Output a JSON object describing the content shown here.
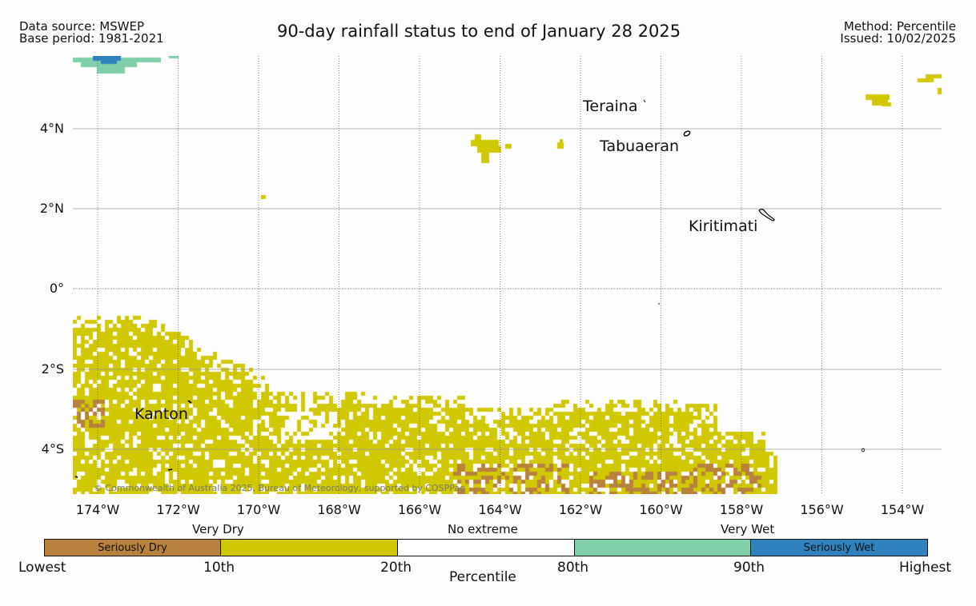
{
  "header": {
    "data_source": "Data source: MSWEP",
    "base_period": "Base period: 1981-2021",
    "title": "90-day rainfall status to end of January 28 2025",
    "method": "Method: Percentile",
    "issued": "Issued: 10/02/2025"
  },
  "map": {
    "lat_ticks": [
      "4°N",
      "2°N",
      "0°",
      "2°S",
      "4°S"
    ],
    "lon_ticks": [
      "174°W",
      "172°W",
      "170°W",
      "168°W",
      "166°W",
      "164°W",
      "162°W",
      "160°W",
      "158°W",
      "156°W",
      "154°W"
    ],
    "places": [
      "Teraina",
      "Tabuaeran",
      "Kiritimati",
      "Kanton"
    ],
    "copyright": "© Commonwealth of Australia 2025, Bureau of Meteorology, supported by COSPPac",
    "colors": {
      "seriously_dry": "#b8823e",
      "very_dry": "#d0c800",
      "no_extreme": "#ffffff",
      "very_wet": "#7fcfa8",
      "seriously_wet": "#2f82be"
    }
  },
  "legend": {
    "groups": [
      "Very Dry",
      "No extreme",
      "Very Wet"
    ],
    "boxes": [
      "Seriously Dry",
      "",
      "",
      "",
      "Seriously Wet"
    ],
    "ticks": [
      "Lowest",
      "10th",
      "20th",
      "80th",
      "90th",
      "Highest"
    ],
    "axis_label": "Percentile"
  }
}
